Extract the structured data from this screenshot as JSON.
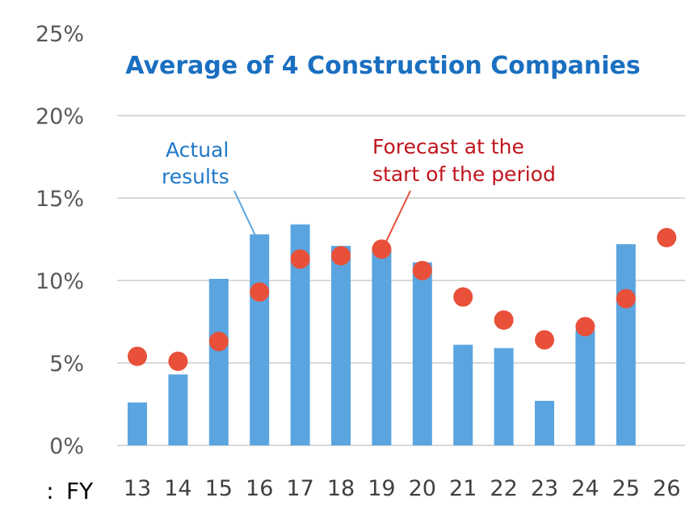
{
  "chart_data": {
    "type": "bar",
    "title": "Average of 4 Construction Companies",
    "xlabel": "FY",
    "x_prefix": ":",
    "ylabel": "",
    "ylim": [
      0,
      25
    ],
    "yticks": [
      "0%",
      "5%",
      "10%",
      "15%",
      "20%",
      "25%"
    ],
    "ytick_values": [
      0,
      5,
      10,
      15,
      20,
      25
    ],
    "grid": true,
    "categories": [
      "13",
      "14",
      "15",
      "16",
      "17",
      "18",
      "19",
      "20",
      "21",
      "22",
      "23",
      "24",
      "25",
      "26"
    ],
    "series": [
      {
        "name": "Actual results",
        "type": "bar",
        "color": "#5aa5e0",
        "values": [
          2.6,
          4.3,
          10.1,
          12.8,
          13.4,
          12.1,
          11.9,
          11.1,
          6.1,
          5.9,
          2.7,
          7.0,
          12.2,
          null
        ]
      },
      {
        "name": "Forecast at the start of the period",
        "type": "scatter",
        "color": "#e8503a",
        "values": [
          5.4,
          5.1,
          6.3,
          9.3,
          11.3,
          11.5,
          11.9,
          10.6,
          9.0,
          7.6,
          6.4,
          7.2,
          8.9,
          12.6
        ]
      }
    ],
    "annotations": {
      "actual": [
        "Actual",
        "results"
      ],
      "forecast": [
        "Forecast at the",
        "start of the period"
      ]
    }
  }
}
